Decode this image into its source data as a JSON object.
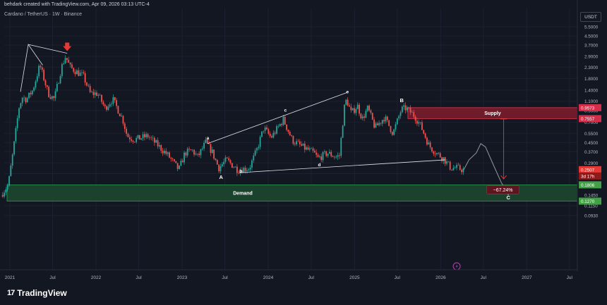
{
  "header": {
    "credit": "behdark created with TradingView.com, Apr 09, 2026 03:13 UTC-4",
    "symbol": "Cardano / TetherUS · 1W · Binance",
    "currency": "USDT"
  },
  "footer": {
    "logo": "TradingView"
  },
  "colors": {
    "background": "#131722",
    "up": "#26a69a",
    "down": "#ef5350",
    "supply": "#801c2b",
    "demand": "#1c4a2e",
    "target_arrow": "#e53935"
  },
  "chart_data": {
    "type": "candlestick",
    "title": "",
    "scale": "log",
    "y_ticks": [
      "5.5000",
      "4.5000",
      "3.7000",
      "2.9000",
      "2.3000",
      "1.8000",
      "1.4000",
      "1.1000",
      "0.9000",
      "0.7000",
      "0.5500",
      "0.4500",
      "0.3700",
      "0.2900",
      "0.2300",
      "0.1800",
      "0.1450",
      "0.1150",
      "0.0930"
    ],
    "x_ticks": [
      "2021",
      "Jul",
      "2022",
      "Jul",
      "2023",
      "Jul",
      "2024",
      "Jul",
      "2025",
      "Jul",
      "2026",
      "Jul",
      "2027",
      "Jul"
    ],
    "price_labels": [
      {
        "value": "0.9573",
        "kind": "supply"
      },
      {
        "value": "0.7557",
        "kind": "supply"
      },
      {
        "value": "0.2507",
        "kind": "last"
      },
      {
        "value": "3d 17h",
        "kind": "countdown"
      },
      {
        "value": "0.1806",
        "kind": "demand"
      },
      {
        "value": "0.1270",
        "kind": "demand"
      }
    ],
    "zones": [
      {
        "name": "Supply",
        "from": 0.7557,
        "to": 0.9573
      },
      {
        "name": "Demand",
        "from": 0.127,
        "to": 0.1806
      }
    ],
    "wave_labels": [
      {
        "label": "a",
        "date": "2023-04-20",
        "price": 0.48
      },
      {
        "label": "b",
        "date": "2023-09-07",
        "price": 0.235
      },
      {
        "label": "c",
        "date": "2024-03-14",
        "price": 0.88
      },
      {
        "label": "d",
        "date": "2024-08-05",
        "price": 0.27
      },
      {
        "label": "e",
        "date": "2024-12-02",
        "price": 1.3
      },
      {
        "label": "A",
        "date": "2023-06-15",
        "price": 0.205
      },
      {
        "label": "B",
        "date": "2025-07-20",
        "price": 1.08
      },
      {
        "label": "C",
        "date": "2026-10-15",
        "price": 0.132
      }
    ],
    "target_label": "−67.24%",
    "price_path": [
      [
        "2020-12-01",
        0.145
      ],
      [
        "2021-01-01",
        0.18
      ],
      [
        "2021-01-20",
        0.35
      ],
      [
        "2021-02-15",
        0.95
      ],
      [
        "2021-03-01",
        1.2
      ],
      [
        "2021-03-20",
        1.15
      ],
      [
        "2021-04-15",
        1.4
      ],
      [
        "2021-05-15",
        2.4
      ],
      [
        "2021-06-01",
        1.8
      ],
      [
        "2021-06-20",
        1.3
      ],
      [
        "2021-07-15",
        1.15
      ],
      [
        "2021-08-15",
        2.3
      ],
      [
        "2021-09-01",
        2.9
      ],
      [
        "2021-09-20",
        2.3
      ],
      [
        "2021-10-15",
        2.1
      ],
      [
        "2021-11-15",
        1.9
      ],
      [
        "2021-12-15",
        1.3
      ],
      [
        "2022-01-15",
        1.3
      ],
      [
        "2022-02-15",
        0.95
      ],
      [
        "2022-03-20",
        1.15
      ],
      [
        "2022-05-01",
        0.75
      ],
      [
        "2022-05-20",
        0.52
      ],
      [
        "2022-06-20",
        0.48
      ],
      [
        "2022-08-15",
        0.52
      ],
      [
        "2022-09-20",
        0.44
      ],
      [
        "2022-11-10",
        0.34
      ],
      [
        "2022-12-25",
        0.25
      ],
      [
        "2023-01-20",
        0.36
      ],
      [
        "2023-02-20",
        0.38
      ],
      [
        "2023-03-15",
        0.33
      ],
      [
        "2023-04-18",
        0.45
      ],
      [
        "2023-05-15",
        0.37
      ],
      [
        "2023-06-12",
        0.26
      ],
      [
        "2023-07-15",
        0.31
      ],
      [
        "2023-09-01",
        0.25
      ],
      [
        "2023-10-20",
        0.26
      ],
      [
        "2023-11-20",
        0.38
      ],
      [
        "2023-12-20",
        0.62
      ],
      [
        "2024-01-20",
        0.5
      ],
      [
        "2024-03-12",
        0.74
      ],
      [
        "2024-04-20",
        0.47
      ],
      [
        "2024-06-10",
        0.4
      ],
      [
        "2024-07-20",
        0.36
      ],
      [
        "2024-08-05",
        0.32
      ],
      [
        "2024-09-15",
        0.36
      ],
      [
        "2024-10-20",
        0.33
      ],
      [
        "2024-11-05",
        0.34
      ],
      [
        "2024-11-25",
        0.95
      ],
      [
        "2024-12-05",
        1.15
      ],
      [
        "2024-12-25",
        0.85
      ],
      [
        "2025-01-20",
        1.0
      ],
      [
        "2025-02-10",
        0.75
      ],
      [
        "2025-03-05",
        0.95
      ],
      [
        "2025-04-05",
        0.62
      ],
      [
        "2025-05-15",
        0.78
      ],
      [
        "2025-06-20",
        0.55
      ],
      [
        "2025-07-25",
        0.92
      ],
      [
        "2025-08-15",
        0.95
      ],
      [
        "2025-09-20",
        0.8
      ],
      [
        "2025-10-15",
        0.65
      ],
      [
        "2025-11-20",
        0.42
      ],
      [
        "2025-12-20",
        0.36
      ],
      [
        "2026-01-20",
        0.32
      ],
      [
        "2026-02-20",
        0.26
      ],
      [
        "2026-03-20",
        0.26
      ],
      [
        "2026-04-09",
        0.2507
      ]
    ],
    "projection_path": [
      [
        "2026-04-09",
        0.2507
      ],
      [
        "2026-05-01",
        0.31
      ],
      [
        "2026-06-01",
        0.36
      ],
      [
        "2026-06-20",
        0.44
      ],
      [
        "2026-07-10",
        0.41
      ],
      [
        "2026-08-15",
        0.27
      ],
      [
        "2026-09-15",
        0.19
      ],
      [
        "2026-10-15",
        0.145
      ]
    ],
    "triangle_upper": [
      [
        "2023-04-18",
        0.44
      ],
      [
        "2024-12-01",
        1.33
      ]
    ],
    "triangle_lower": [
      [
        "2023-09-01",
        0.235
      ],
      [
        "2026-01-20",
        0.31
      ]
    ],
    "wave_lines": [
      [
        [
          "2021-02-15",
          1.35
        ],
        [
          "2021-03-20",
          3.75
        ],
        [
          "2021-05-20",
          2.4
        ]
      ],
      [
        [
          "2021-03-20",
          3.75
        ],
        [
          "2021-09-01",
          3.1
        ]
      ]
    ],
    "top_marker": {
      "date": "2021-09-01",
      "price": 3.25
    }
  }
}
